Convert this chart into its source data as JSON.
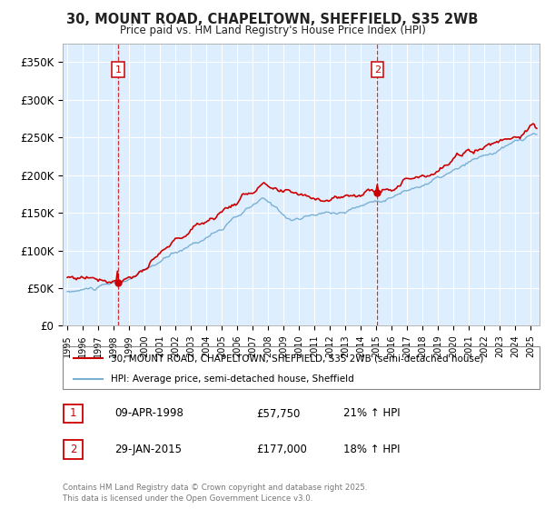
{
  "title_line1": "30, MOUNT ROAD, CHAPELTOWN, SHEFFIELD, S35 2WB",
  "title_line2": "Price paid vs. HM Land Registry's House Price Index (HPI)",
  "sale1_date": "09-APR-1998",
  "sale1_price": 57750,
  "sale1_hpi_text": "21% ↑ HPI",
  "sale2_date": "29-JAN-2015",
  "sale2_price": 177000,
  "sale2_hpi_text": "18% ↑ HPI",
  "legend_line1": "30, MOUNT ROAD, CHAPELTOWN, SHEFFIELD, S35 2WB (semi-detached house)",
  "legend_line2": "HPI: Average price, semi-detached house, Sheffield",
  "footer": "Contains HM Land Registry data © Crown copyright and database right 2025.\nThis data is licensed under the Open Government Licence v3.0.",
  "property_color": "#cc0000",
  "hpi_color": "#7ab0d4",
  "vline_color": "#cc0000",
  "chart_bg_color": "#ddeeff",
  "ylim_max": 375000,
  "ylim_min": 0,
  "background_color": "#ffffff",
  "grid_color": "#ffffff",
  "sale1_year": 1998.29,
  "sale2_year": 2015.08
}
